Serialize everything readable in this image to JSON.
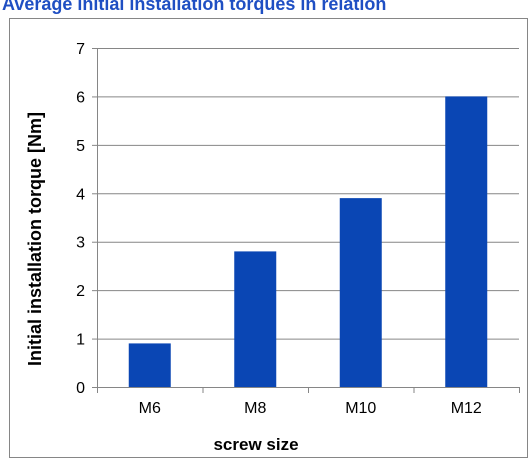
{
  "chart_data": {
    "type": "bar",
    "title": "Average initial installation torques  in relation",
    "xlabel": "screw size",
    "ylabel": "Initial installation torque [Nm]",
    "categories": [
      "M6",
      "M8",
      "M10",
      "M12"
    ],
    "values": [
      0.9,
      2.8,
      3.9,
      6.0
    ],
    "ylim": [
      0,
      7
    ],
    "yticks": [
      "0",
      "1",
      "2",
      "3",
      "4",
      "5",
      "6",
      "7"
    ],
    "grid": true,
    "legend": "none",
    "colors": {
      "bar": "#0a46b4",
      "grid": "#868686",
      "axis": "#868686",
      "title": "#1f4fc3"
    }
  }
}
